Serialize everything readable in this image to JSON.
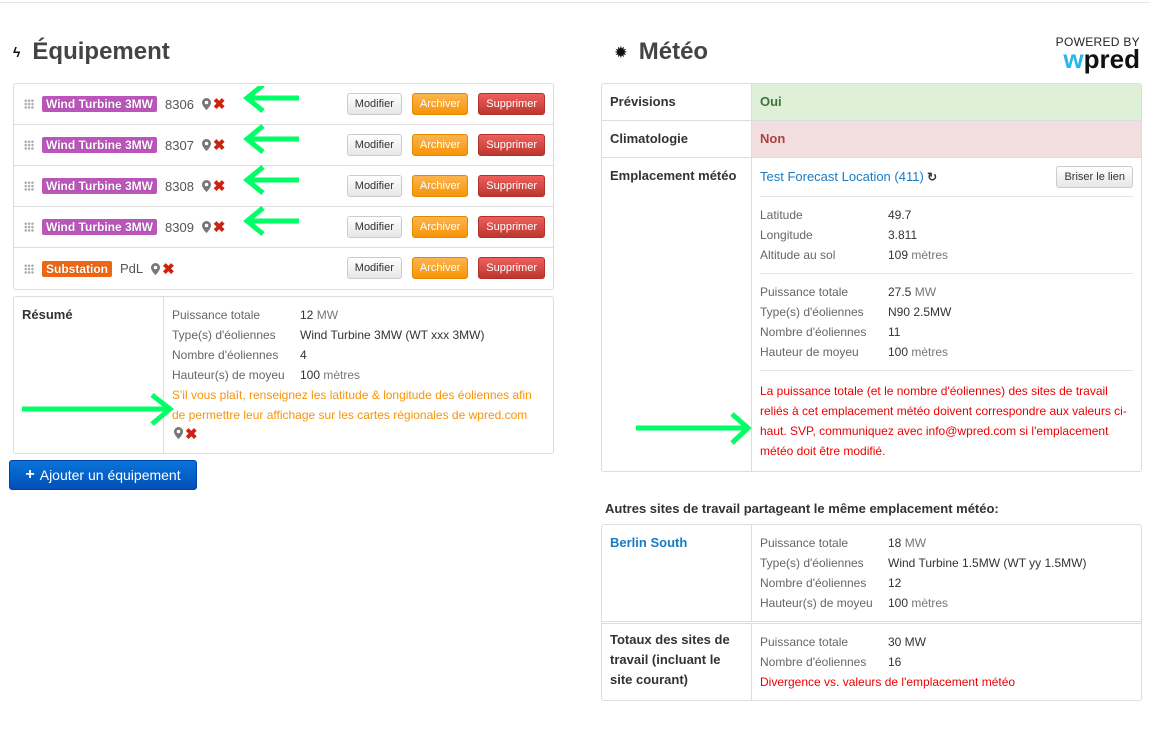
{
  "equipment": {
    "title": "Équipement",
    "title_icon": "bolt-icon",
    "items": [
      {
        "type": "Wind Turbine 3MW",
        "type_color": "#bb55bb",
        "name": "8306"
      },
      {
        "type": "Wind Turbine 3MW",
        "type_color": "#bb55bb",
        "name": "8307"
      },
      {
        "type": "Wind Turbine 3MW",
        "type_color": "#bb55bb",
        "name": "8308"
      },
      {
        "type": "Wind Turbine 3MW",
        "type_color": "#bb55bb",
        "name": "8309"
      },
      {
        "type": "Substation",
        "type_color": "#ee6611",
        "name": "PdL"
      }
    ],
    "buttons": {
      "edit": "Modifier",
      "archive": "Archiver",
      "delete": "Supprimer"
    },
    "summary": {
      "label": "Résumé",
      "rows": [
        {
          "k": "Puissance totale",
          "v": "12",
          "unit": "MW"
        },
        {
          "k": "Type(s) d'éoliennes",
          "v": "Wind Turbine 3MW (WT xxx 3MW)",
          "unit": ""
        },
        {
          "k": "Nombre d'éoliennes",
          "v": "4",
          "unit": ""
        },
        {
          "k": "Hauteur(s) de moyeu",
          "v": "100",
          "unit": "mètres"
        }
      ],
      "warning": "S'il vous plaît, renseignez les latitude & longitude des éoliennes afin de permettre leur affichage sur les cartes régionales de wpred.com"
    },
    "add_button": "Ajouter un équipement"
  },
  "weather": {
    "title": "Météo",
    "title_icon": "sun-icon",
    "logo": {
      "powered": "POWERED BY",
      "brand_w": "w",
      "brand_rest": "pred"
    },
    "forecast": {
      "label": "Prévisions",
      "value": "Oui"
    },
    "climatology": {
      "label": "Climatologie",
      "value": "Non"
    },
    "location": {
      "label": "Emplacement météo",
      "link": "Test Forecast Location (411)",
      "unlink_button": "Briser le lien",
      "geo": [
        {
          "k": "Latitude",
          "v": "49.7",
          "unit": ""
        },
        {
          "k": "Longitude",
          "v": "3.811",
          "unit": ""
        },
        {
          "k": "Altitude au sol",
          "v": "109",
          "unit": "mètres"
        }
      ],
      "specs": [
        {
          "k": "Puissance totale",
          "v": "27.5",
          "unit": "MW"
        },
        {
          "k": "Type(s) d'éoliennes",
          "v": "N90 2.5MW",
          "unit": ""
        },
        {
          "k": "Nombre d'éoliennes",
          "v": "11",
          "unit": ""
        },
        {
          "k": "Hauteur de moyeu",
          "v": "100",
          "unit": "mètres"
        }
      ],
      "warning": "La puissance totale (et le nombre d'éoliennes) des sites de travail reliés à cet emplacement météo doivent correspondre aux valeurs ci-haut. SVP, communiquez avec info@wpred.com si l'emplacement météo doit être modifié."
    },
    "other_title": "Autres sites de travail partageant le même emplacement météo:",
    "other_site": {
      "name": "Berlin South",
      "rows": [
        {
          "k": "Puissance totale",
          "v": "18",
          "unit": "MW"
        },
        {
          "k": "Type(s) d'éoliennes",
          "v": "Wind Turbine 1.5MW (WT yy 1.5MW)",
          "unit": ""
        },
        {
          "k": "Nombre d'éoliennes",
          "v": "12",
          "unit": ""
        },
        {
          "k": "Hauteur(s) de moyeu",
          "v": "100",
          "unit": "mètres"
        }
      ]
    },
    "totals": {
      "label": "Totaux des sites de travail (incluant le site courant)",
      "rows": [
        {
          "k": "Puissance totale",
          "v": "30 MW"
        },
        {
          "k": "Nombre d'éoliennes",
          "v": "16"
        }
      ],
      "warning": "Divergence vs. valeurs de l'emplacement météo"
    }
  },
  "colors": {
    "annotation_arrow": "#00ff66",
    "warning_orange": "#f89406",
    "warning_red": "#ee0000",
    "link": "#1a7bc4"
  }
}
